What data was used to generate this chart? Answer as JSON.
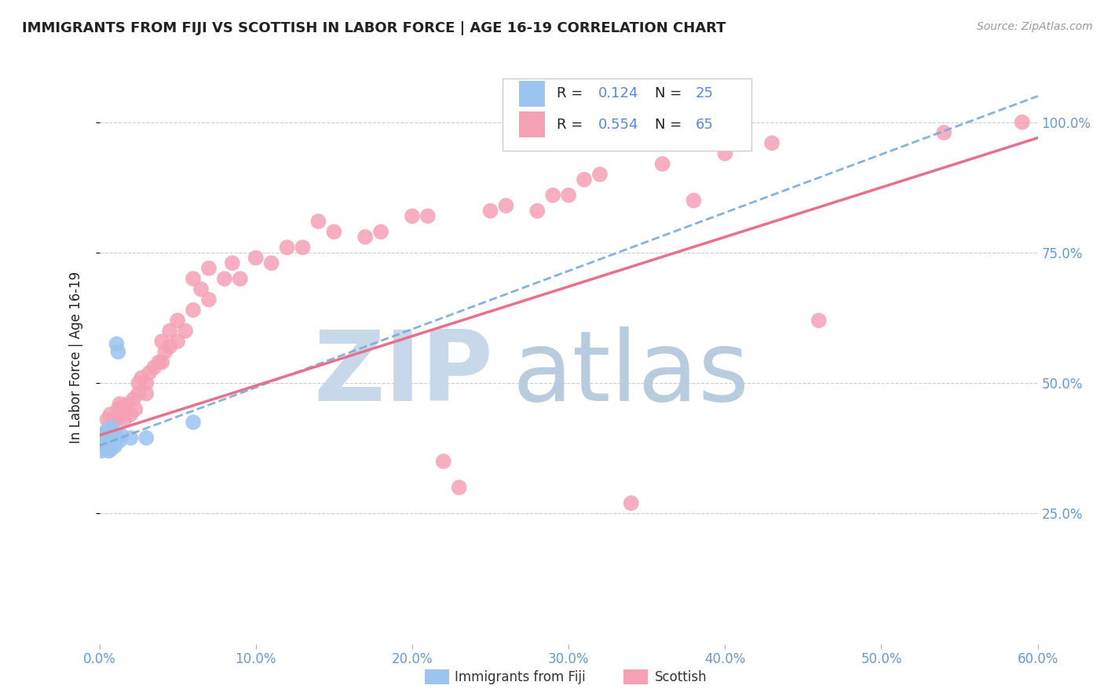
{
  "title": "IMMIGRANTS FROM FIJI VS SCOTTISH IN LABOR FORCE | AGE 16-19 CORRELATION CHART",
  "source": "Source: ZipAtlas.com",
  "ylabel": "In Labor Force | Age 16-19",
  "xlim": [
    0.0,
    0.6
  ],
  "ylim": [
    0.0,
    1.1
  ],
  "ytick_vals": [
    0.25,
    0.5,
    0.75,
    1.0
  ],
  "ytick_labels": [
    "25.0%",
    "50.0%",
    "75.0%",
    "100.0%"
  ],
  "xtick_vals": [
    0.0,
    0.1,
    0.2,
    0.3,
    0.4,
    0.5,
    0.6
  ],
  "xtick_labels": [
    "0.0%",
    "10.0%",
    "20.0%",
    "30.0%",
    "40.0%",
    "50.0%",
    "60.0%"
  ],
  "fiji_color": "#9BC4F0",
  "scottish_color": "#F5A0B5",
  "fiji_line_color": "#7BAAD4",
  "scottish_line_color": "#E8708A",
  "fiji_R": "0.124",
  "fiji_N": "25",
  "scottish_R": "0.554",
  "scottish_N": "65",
  "watermark_zip_color": "#C8D8EB",
  "watermark_atlas_color": "#B8CCE0",
  "tick_color": "#6699CC",
  "grid_color": "#CCCCCC",
  "title_color": "#222222",
  "ylabel_color": "#222222",
  "source_color": "#999999",
  "legend_text_color": "#222222",
  "legend_val_color": "#5588DD",
  "fiji_scatter_x": [
    0.001,
    0.001,
    0.002,
    0.003,
    0.003,
    0.004,
    0.004,
    0.005,
    0.005,
    0.006,
    0.006,
    0.007,
    0.007,
    0.008,
    0.008,
    0.009,
    0.01,
    0.01,
    0.011,
    0.012,
    0.013,
    0.014,
    0.02,
    0.03,
    0.06
  ],
  "fiji_scatter_y": [
    0.39,
    0.37,
    0.4,
    0.385,
    0.395,
    0.375,
    0.405,
    0.38,
    0.41,
    0.37,
    0.395,
    0.385,
    0.4,
    0.375,
    0.415,
    0.39,
    0.38,
    0.405,
    0.575,
    0.56,
    0.39,
    0.4,
    0.395,
    0.395,
    0.425
  ],
  "scottish_scatter_x": [
    0.002,
    0.005,
    0.007,
    0.008,
    0.01,
    0.012,
    0.013,
    0.014,
    0.015,
    0.016,
    0.018,
    0.02,
    0.022,
    0.023,
    0.025,
    0.025,
    0.027,
    0.03,
    0.03,
    0.032,
    0.035,
    0.038,
    0.04,
    0.04,
    0.042,
    0.045,
    0.045,
    0.05,
    0.05,
    0.055,
    0.06,
    0.06,
    0.065,
    0.07,
    0.07,
    0.08,
    0.085,
    0.09,
    0.1,
    0.11,
    0.12,
    0.13,
    0.14,
    0.15,
    0.17,
    0.18,
    0.2,
    0.21,
    0.22,
    0.23,
    0.25,
    0.26,
    0.28,
    0.29,
    0.3,
    0.31,
    0.32,
    0.34,
    0.36,
    0.38,
    0.4,
    0.43,
    0.46,
    0.54,
    0.59
  ],
  "scottish_scatter_y": [
    0.4,
    0.43,
    0.44,
    0.42,
    0.43,
    0.45,
    0.46,
    0.44,
    0.455,
    0.43,
    0.46,
    0.44,
    0.47,
    0.45,
    0.5,
    0.48,
    0.51,
    0.48,
    0.5,
    0.52,
    0.53,
    0.54,
    0.54,
    0.58,
    0.56,
    0.57,
    0.6,
    0.58,
    0.62,
    0.6,
    0.64,
    0.7,
    0.68,
    0.66,
    0.72,
    0.7,
    0.73,
    0.7,
    0.74,
    0.73,
    0.76,
    0.76,
    0.81,
    0.79,
    0.78,
    0.79,
    0.82,
    0.82,
    0.35,
    0.3,
    0.83,
    0.84,
    0.83,
    0.86,
    0.86,
    0.89,
    0.9,
    0.27,
    0.92,
    0.85,
    0.94,
    0.96,
    0.62,
    0.98,
    1.0
  ]
}
